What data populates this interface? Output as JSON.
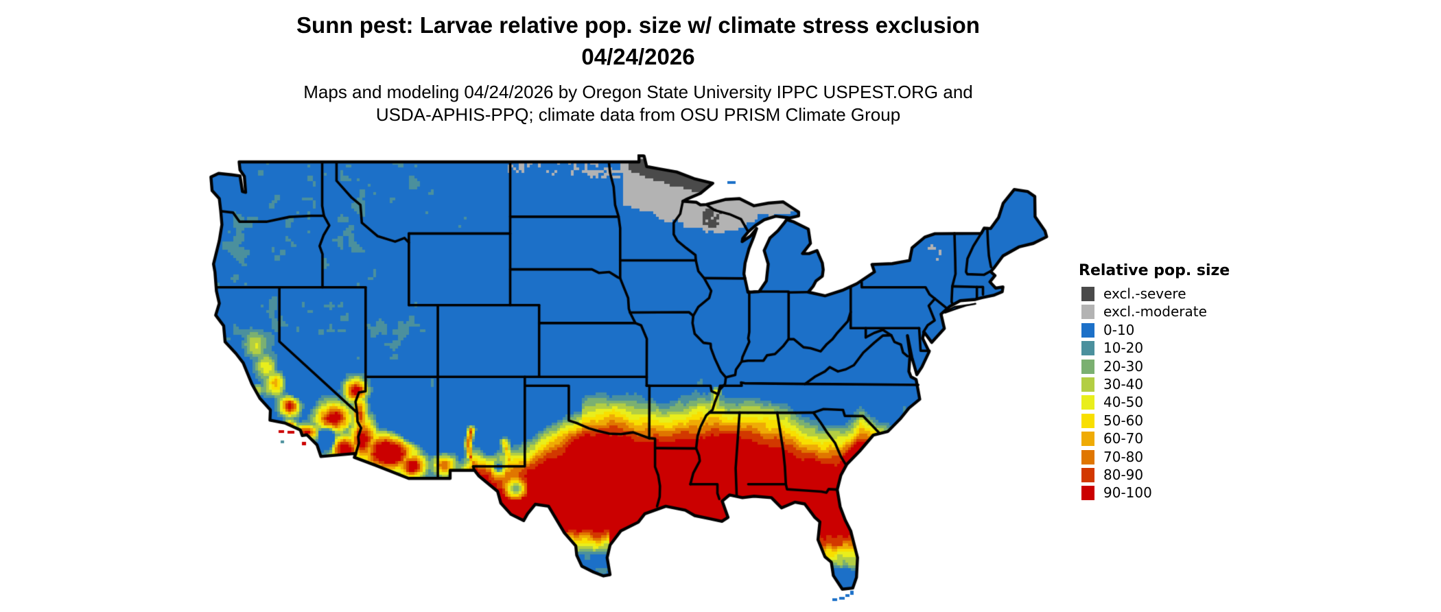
{
  "title": {
    "line1": "Sunn pest: Larvae relative pop. size w/ climate stress exclusion",
    "line2": "04/24/2026"
  },
  "subtitle": {
    "line1": "Maps and modeling 04/24/2026 by Oregon State University IPPC USPEST.ORG and",
    "line2": "USDA-APHIS-PPQ; climate data from OSU PRISM Climate Group"
  },
  "legend": {
    "title": "Relative pop. size",
    "entries": [
      {
        "label": "excl.-severe",
        "color": "#4a4a4a"
      },
      {
        "label": "excl.-moderate",
        "color": "#b3b3b3"
      },
      {
        "label": "0-10",
        "color": "#1c70c8"
      },
      {
        "label": "10-20",
        "color": "#4b909d"
      },
      {
        "label": "20-30",
        "color": "#7bb071"
      },
      {
        "label": "30-40",
        "color": "#b3ce43"
      },
      {
        "label": "40-50",
        "color": "#e9ee1c"
      },
      {
        "label": "50-60",
        "color": "#f8df00"
      },
      {
        "label": "60-70",
        "color": "#efab05"
      },
      {
        "label": "70-80",
        "color": "#e07600"
      },
      {
        "label": "80-90",
        "color": "#d23800"
      },
      {
        "label": "90-100",
        "color": "#cb0000"
      }
    ]
  },
  "map": {
    "region": "Contiguous United States (lower 48 states)",
    "style": "gridded 4-px raster choropleth with black state boundaries on a white background",
    "boundary_color": "#000000",
    "water_color": "#ffffff",
    "visible_pattern": {
      "high_90_100": "Central and southern Texas, Louisiana, southern Mississippi, southern Alabama, southern Georgia and northern/central Florida; desert Southwest including southern Arizona, southeastern California, southernmost Nevada and California's southern Central Valley",
      "transition_band": "Yellow-to-orange band across north Texas and southern Oklahoma, central Mississippi, Alabama and Georgia, the South Carolina coastal plain, and river valleys of New Mexico and west Texas",
      "low_0_10": "Most of the northern, central and mountain United States shown in blue",
      "excluded_moderate": "Northern Minnesota, northern Wisconsin, Michigan's Upper Peninsula and a speckled strip along the North Dakota-Canada border (light gray); small specks in New York's Adirondacks",
      "excluded_severe": "Northeastern Minnesota arrowhead and pockets of the western Upper Peninsula / north Wisconsin (dark gray)",
      "south_inversions": "Southern tip of Texas and southern Florida grade back down through yellow, green and teal to blue"
    }
  }
}
